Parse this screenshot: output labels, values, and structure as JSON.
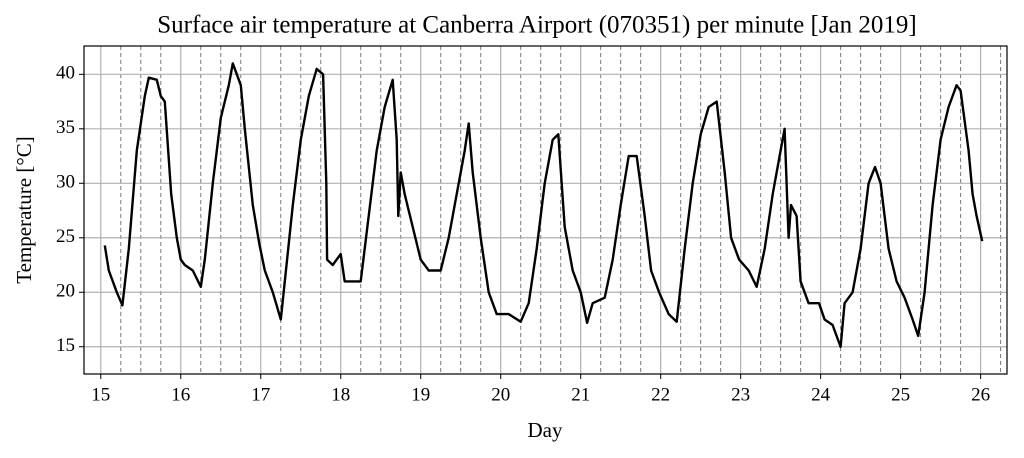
{
  "chart_data": {
    "type": "line",
    "title": "Surface air temperature at Canberra Airport (070351) per minute [Jan 2019]",
    "xlabel": "Day",
    "ylabel": "Temperature [°C]",
    "color": "#000000",
    "grid": true,
    "xlim": [
      14.79,
      26.33
    ],
    "ylim": [
      12.5,
      42.6
    ],
    "xticks": [
      15,
      16,
      17,
      18,
      19,
      20,
      21,
      22,
      23,
      24,
      25,
      26
    ],
    "yticks": [
      15,
      20,
      25,
      30,
      35,
      40
    ],
    "xminorticks": [
      15.25,
      15.5,
      15.75,
      16.25,
      16.5,
      16.75,
      17.25,
      17.5,
      17.75,
      18.25,
      18.5,
      18.75,
      19.25,
      19.5,
      19.75,
      20.25,
      20.5,
      20.75,
      21.25,
      21.5,
      21.75,
      22.25,
      22.5,
      22.75,
      23.25,
      23.5,
      23.75,
      24.25,
      24.5,
      24.75,
      25.25,
      25.5,
      25.75,
      26.25
    ],
    "x": [
      15.05,
      15.1,
      15.2,
      15.27,
      15.35,
      15.45,
      15.55,
      15.6,
      15.7,
      15.75,
      15.8,
      15.88,
      15.95,
      16.0,
      16.05,
      16.15,
      16.25,
      16.3,
      16.4,
      16.5,
      16.6,
      16.65,
      16.75,
      16.8,
      16.9,
      16.98,
      17.05,
      17.15,
      17.25,
      17.3,
      17.4,
      17.5,
      17.6,
      17.7,
      17.78,
      17.82,
      17.83,
      17.9,
      18.0,
      18.05,
      18.15,
      18.25,
      18.35,
      18.45,
      18.55,
      18.65,
      18.7,
      18.72,
      18.75,
      18.8,
      18.9,
      19.0,
      19.1,
      19.25,
      19.35,
      19.45,
      19.55,
      19.6,
      19.65,
      19.75,
      19.85,
      19.95,
      20.1,
      20.25,
      20.35,
      20.45,
      20.55,
      20.65,
      20.72,
      20.8,
      20.9,
      21.0,
      21.08,
      21.15,
      21.3,
      21.4,
      21.5,
      21.6,
      21.7,
      21.8,
      21.88,
      21.98,
      22.1,
      22.2,
      22.3,
      22.4,
      22.5,
      22.6,
      22.7,
      22.8,
      22.88,
      22.98,
      23.1,
      23.2,
      23.3,
      23.4,
      23.5,
      23.55,
      23.6,
      23.63,
      23.7,
      23.75,
      23.85,
      23.98,
      24.05,
      24.15,
      24.25,
      24.3,
      24.4,
      24.5,
      24.6,
      24.68,
      24.75,
      24.85,
      24.95,
      25.05,
      25.15,
      25.22,
      25.3,
      25.4,
      25.5,
      25.6,
      25.7,
      25.75,
      25.85,
      25.9,
      25.95,
      26.02
    ],
    "values": [
      24.3,
      22,
      20,
      18.8,
      24,
      33,
      38,
      39.7,
      39.5,
      38,
      37.5,
      29,
      25,
      23,
      22.5,
      22,
      20.5,
      23,
      30,
      36,
      39,
      41,
      39,
      35,
      28,
      24.5,
      22,
      20,
      17.5,
      21,
      28,
      34,
      38,
      40.5,
      40,
      30,
      23,
      22.5,
      23.5,
      21,
      21,
      21,
      27,
      33,
      37,
      39.5,
      34,
      27,
      31,
      29,
      26,
      23,
      22,
      22,
      25,
      29,
      33,
      35.5,
      31,
      25,
      20,
      18,
      18,
      17.3,
      19,
      24,
      30,
      34,
      34.5,
      26,
      22,
      20,
      17.2,
      19,
      19.5,
      23,
      28,
      32.5,
      32.5,
      27,
      22,
      20,
      18,
      17.3,
      24,
      30,
      34.5,
      37,
      37.5,
      31,
      25,
      23,
      22,
      20.5,
      24,
      29,
      33,
      35,
      25,
      28,
      27,
      21,
      19,
      19,
      17.5,
      17,
      15,
      19,
      20,
      24,
      30,
      31.5,
      30,
      24,
      21,
      19.5,
      17.5,
      16,
      20,
      28,
      34,
      37,
      39,
      38.5,
      33,
      29,
      27,
      24.7
    ]
  }
}
